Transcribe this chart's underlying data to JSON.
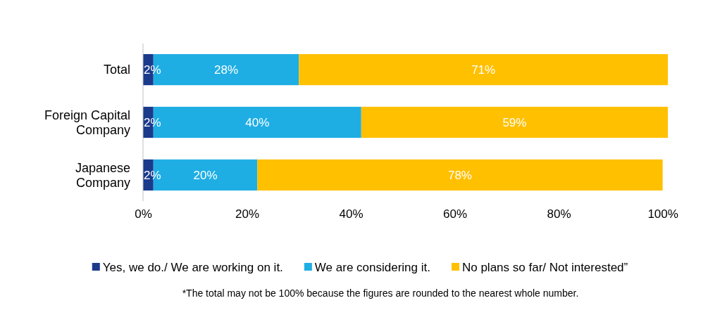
{
  "chart_data": {
    "type": "bar",
    "orientation": "horizontal",
    "stacked": true,
    "categories": [
      "Total",
      "Foreign Capital Company",
      "Japanese Company"
    ],
    "series": [
      {
        "name": "Yes, we do./ We are working on it.",
        "color": "#1b3a8c",
        "values": [
          2,
          2,
          2
        ],
        "value_labels": [
          "2%",
          "2%",
          "2%"
        ]
      },
      {
        "name": "We are considering it.",
        "color": "#1eaee4",
        "values": [
          28,
          40,
          20
        ],
        "value_labels": [
          "28%",
          "40%",
          "20%"
        ]
      },
      {
        "name": "No plans so far/ Not interested”",
        "color": "#ffc000",
        "values": [
          71,
          59,
          78
        ],
        "value_labels": [
          "71%",
          "59%",
          "78%"
        ]
      }
    ],
    "xlim": [
      0,
      101
    ],
    "xticks": [
      {
        "value": 0,
        "label": "0%"
      },
      {
        "value": 20,
        "label": "20%"
      },
      {
        "value": 40,
        "label": "40%"
      },
      {
        "value": 60,
        "label": "60%"
      },
      {
        "value": 80,
        "label": "80%"
      },
      {
        "value": 100,
        "label": "100%"
      }
    ],
    "grid": false,
    "legend": "bottom",
    "annotations": [
      "*The total may not be 100% because the figures are rounded to the nearest whole number."
    ]
  }
}
